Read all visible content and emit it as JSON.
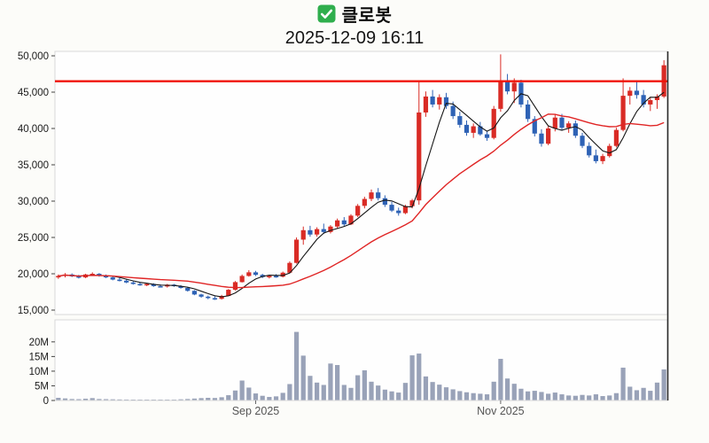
{
  "header": {
    "title": "클로봇",
    "datetime": "2025-12-09 16:11",
    "checkbox_icon": "green-checkbox",
    "checkbox_color": "#2fae4d"
  },
  "chart_data": {
    "type": "candlestick",
    "title": "클로봇",
    "timestamp": "2025-12-09 16:11",
    "legend_position": "none",
    "grid": false,
    "price_axis": {
      "min": 15000,
      "max": 50000,
      "ticks": [
        {
          "v": 50000,
          "label": "50,000"
        },
        {
          "v": 45000,
          "label": "45,000"
        },
        {
          "v": 40000,
          "label": "40,000"
        },
        {
          "v": 35000,
          "label": "35,000"
        },
        {
          "v": 30000,
          "label": "30,000"
        },
        {
          "v": 25000,
          "label": "25,000"
        },
        {
          "v": 20000,
          "label": "20,000"
        },
        {
          "v": 15000,
          "label": "15,000"
        }
      ]
    },
    "volume_axis": {
      "unit": "M",
      "max_plot": 26,
      "ticks": [
        {
          "v": 20,
          "label": "20M"
        },
        {
          "v": 15,
          "label": "15M"
        },
        {
          "v": 10,
          "label": "10M"
        },
        {
          "v": 5,
          "label": "5M"
        },
        {
          "v": 0,
          "label": "0"
        }
      ]
    },
    "x_ticks": [
      {
        "index": 29,
        "label": "Sep 2025"
      },
      {
        "index": 65,
        "label": "Nov 2025"
      }
    ],
    "resistance_line": 46500,
    "moving_averages": [
      {
        "name": "ma-short",
        "window": 5,
        "color": "#151515",
        "width": 1.1
      },
      {
        "name": "ma-long",
        "window": 20,
        "color": "#e02525",
        "width": 1.4
      }
    ],
    "colors": {
      "up": "#d92b25",
      "down": "#2e62b5",
      "volume": "#99a2b8",
      "resistance": "#f01407",
      "panel": "#fefefe",
      "border": "#d9d9d9",
      "spine": "#2b2b2b",
      "tick_text": "#1a1a1a",
      "x_text": "#555555"
    },
    "candles_format": [
      "open",
      "high",
      "low",
      "close",
      "volume_millions"
    ],
    "candles": [
      [
        19500,
        19900,
        19300,
        19700,
        0.9
      ],
      [
        19700,
        20100,
        19500,
        19900,
        0.7
      ],
      [
        19900,
        20050,
        19550,
        19650,
        0.5
      ],
      [
        19650,
        19850,
        19350,
        19500,
        0.45
      ],
      [
        19500,
        20000,
        19400,
        19900,
        0.6
      ],
      [
        19900,
        20200,
        19700,
        20000,
        0.8
      ],
      [
        20000,
        20100,
        19600,
        19750,
        0.5
      ],
      [
        19750,
        19900,
        19400,
        19500,
        0.45
      ],
      [
        19500,
        19600,
        19100,
        19200,
        0.4
      ],
      [
        19200,
        19450,
        18950,
        19050,
        0.35
      ],
      [
        19050,
        19200,
        18700,
        18800,
        0.32
      ],
      [
        18800,
        19000,
        18500,
        18600,
        0.3
      ],
      [
        18600,
        18850,
        18350,
        18450,
        0.3
      ],
      [
        18450,
        18700,
        18300,
        18600,
        0.26
      ],
      [
        18600,
        18700,
        18200,
        18300,
        0.3
      ],
      [
        18300,
        18550,
        18150,
        18250,
        0.28
      ],
      [
        18250,
        18600,
        18100,
        18500,
        0.3
      ],
      [
        18500,
        18600,
        18200,
        18300,
        0.26
      ],
      [
        18300,
        18450,
        17950,
        18050,
        0.4
      ],
      [
        18050,
        18150,
        17550,
        17650,
        0.5
      ],
      [
        17650,
        17750,
        17050,
        17150,
        0.65
      ],
      [
        17150,
        17250,
        16700,
        16850,
        0.8
      ],
      [
        16850,
        17000,
        16500,
        16650,
        0.9
      ],
      [
        16650,
        16900,
        16400,
        16550,
        0.85
      ],
      [
        16550,
        17100,
        16450,
        16950,
        1.1
      ],
      [
        16950,
        17900,
        16900,
        17800,
        1.8
      ],
      [
        17800,
        19000,
        17700,
        18850,
        3.4
      ],
      [
        18850,
        19900,
        18800,
        19700,
        6.8
      ],
      [
        19700,
        20500,
        19600,
        20200,
        4.4
      ],
      [
        20200,
        20400,
        19700,
        19850,
        2.4
      ],
      [
        19850,
        20000,
        19400,
        19550,
        1.6
      ],
      [
        19550,
        19850,
        19350,
        19700,
        1.2
      ],
      [
        19700,
        19950,
        19450,
        19600,
        1.4
      ],
      [
        19600,
        20300,
        19500,
        20150,
        2.6
      ],
      [
        20150,
        21700,
        20050,
        21500,
        5.6
      ],
      [
        21500,
        25000,
        21400,
        24700,
        23.4
      ],
      [
        24700,
        26500,
        24000,
        26000,
        15.3
      ],
      [
        26000,
        26600,
        25100,
        25400,
        8.4
      ],
      [
        25400,
        26400,
        25100,
        26150,
        6.1
      ],
      [
        26150,
        26900,
        25500,
        25750,
        5.3
      ],
      [
        25750,
        26700,
        25550,
        26500,
        12.6
      ],
      [
        26500,
        27600,
        26200,
        27350,
        12.1
      ],
      [
        27350,
        27800,
        26500,
        26800,
        5.3
      ],
      [
        26800,
        28200,
        26700,
        28000,
        4.3
      ],
      [
        28000,
        29600,
        27800,
        29350,
        8.6
      ],
      [
        29350,
        30600,
        29000,
        30300,
        10.3
      ],
      [
        30300,
        31600,
        30000,
        31200,
        6.4
      ],
      [
        31200,
        31800,
        30100,
        30400,
        5.1
      ],
      [
        30400,
        30800,
        29200,
        29500,
        3.7
      ],
      [
        29500,
        29900,
        28500,
        28700,
        3.1
      ],
      [
        28700,
        29100,
        28000,
        28350,
        2.7
      ],
      [
        28350,
        29500,
        28200,
        29300,
        6.0
      ],
      [
        29300,
        30300,
        29000,
        30100,
        15.4
      ],
      [
        30100,
        46500,
        29500,
        42200,
        16.0
      ],
      [
        42200,
        45100,
        41600,
        44400,
        8.2
      ],
      [
        44400,
        45300,
        42900,
        43300,
        6.3
      ],
      [
        43300,
        44700,
        42600,
        44300,
        5.4
      ],
      [
        44300,
        44900,
        42700,
        43100,
        4.5
      ],
      [
        43100,
        43700,
        41300,
        41700,
        3.8
      ],
      [
        41700,
        42300,
        40100,
        40500,
        3.2
      ],
      [
        40500,
        41100,
        39000,
        39400,
        2.8
      ],
      [
        39400,
        40700,
        38700,
        40300,
        2.5
      ],
      [
        40300,
        40900,
        39000,
        39200,
        2.3
      ],
      [
        39200,
        39700,
        38300,
        38700,
        2.1
      ],
      [
        38700,
        43100,
        38500,
        42700,
        6.4
      ],
      [
        42700,
        50200,
        42300,
        46500,
        14.2
      ],
      [
        46500,
        47500,
        44700,
        45100,
        7.5
      ],
      [
        45100,
        46900,
        43500,
        46300,
        5.7
      ],
      [
        46300,
        46700,
        42900,
        43300,
        4.0
      ],
      [
        43300,
        43900,
        40900,
        41300,
        3.1
      ],
      [
        41300,
        41700,
        38900,
        39300,
        3.3
      ],
      [
        39300,
        39900,
        37500,
        37900,
        2.9
      ],
      [
        37900,
        40300,
        37700,
        40000,
        2.3
      ],
      [
        40000,
        41900,
        39600,
        41500,
        2.7
      ],
      [
        41500,
        42000,
        39700,
        40100,
        2.1
      ],
      [
        40100,
        41000,
        39400,
        40700,
        1.7
      ],
      [
        40700,
        41100,
        38700,
        39000,
        1.6
      ],
      [
        39000,
        39400,
        37300,
        37600,
        1.9
      ],
      [
        37600,
        38100,
        36000,
        36300,
        1.7
      ],
      [
        36300,
        37100,
        35200,
        35500,
        2.1
      ],
      [
        35500,
        36500,
        35100,
        36200,
        1.5
      ],
      [
        36200,
        37900,
        36000,
        37600,
        1.7
      ],
      [
        37600,
        40100,
        37400,
        39800,
        2.5
      ],
      [
        39800,
        46900,
        39600,
        44500,
        11.2
      ],
      [
        44500,
        45700,
        43300,
        45200,
        4.7
      ],
      [
        45200,
        46500,
        44100,
        44600,
        3.5
      ],
      [
        44600,
        45300,
        42900,
        43300,
        4.3
      ],
      [
        43300,
        44200,
        42400,
        43900,
        3.3
      ],
      [
        43900,
        44700,
        42700,
        44400,
        6.1
      ],
      [
        44400,
        49400,
        44200,
        48700,
        10.6
      ]
    ]
  }
}
